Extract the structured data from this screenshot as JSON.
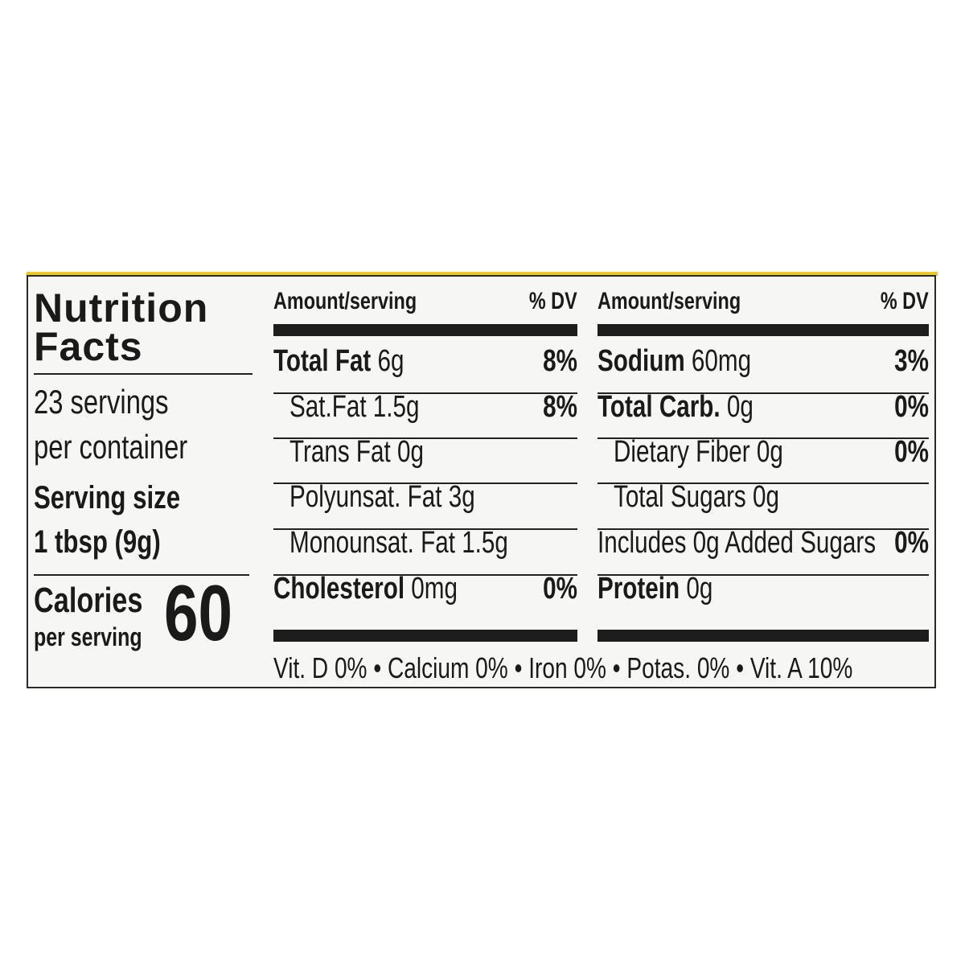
{
  "title_line1": "Nutrition",
  "title_line2": "Facts",
  "servings_line1": "23 servings",
  "servings_line2": "per container",
  "serving_size_label": "Serving size",
  "serving_size_value": "1 tbsp (9g)",
  "calories_label": "Calories",
  "calories_sub": "per serving",
  "calories_value": "60",
  "left_table": {
    "header_amount": "Amount/serving",
    "header_dv": "% DV",
    "rows": [
      {
        "name": "Total Fat",
        "amount": "6g",
        "dv": "8%",
        "bold": true,
        "indent": false
      },
      {
        "name": "Sat.Fat",
        "amount": "1.5g",
        "dv": "8%",
        "bold": false,
        "indent": true
      },
      {
        "name": "Trans Fat",
        "amount": "0g",
        "dv": "",
        "bold": false,
        "indent": true
      },
      {
        "name": "Polyunsat. Fat",
        "amount": "3g",
        "dv": "",
        "bold": false,
        "indent": true
      },
      {
        "name": "Monounsat. Fat",
        "amount": "1.5g",
        "dv": "",
        "bold": false,
        "indent": true
      },
      {
        "name": "Cholesterol",
        "amount": "0mg",
        "dv": "0%",
        "bold": true,
        "indent": false
      }
    ]
  },
  "right_table": {
    "header_amount": "Amount/serving",
    "header_dv": "% DV",
    "rows": [
      {
        "name": "Sodium",
        "amount": "60mg",
        "dv": "3%",
        "bold": true,
        "indent": false
      },
      {
        "name": "Total Carb.",
        "amount": "0g",
        "dv": "0%",
        "bold": true,
        "indent": false
      },
      {
        "name": "Dietary Fiber",
        "amount": "0g",
        "dv": "0%",
        "bold": false,
        "indent": true
      },
      {
        "name": "Total Sugars",
        "amount": "0g",
        "dv": "",
        "bold": false,
        "indent": true
      },
      {
        "name": "Includes 0g Added Sugars",
        "amount": "",
        "dv": "0%",
        "bold": false,
        "indent": false
      },
      {
        "name": "Protein",
        "amount": "0g",
        "dv": "",
        "bold": true,
        "indent": false
      }
    ]
  },
  "vitamins": "Vit. D 0% • Calcium 0% • Iron 0% • Potas. 0% • Vit. A 10%",
  "colors": {
    "ink": "#1d1d1d",
    "panel": "#f6f6f4",
    "edge": "#e8c82a"
  }
}
